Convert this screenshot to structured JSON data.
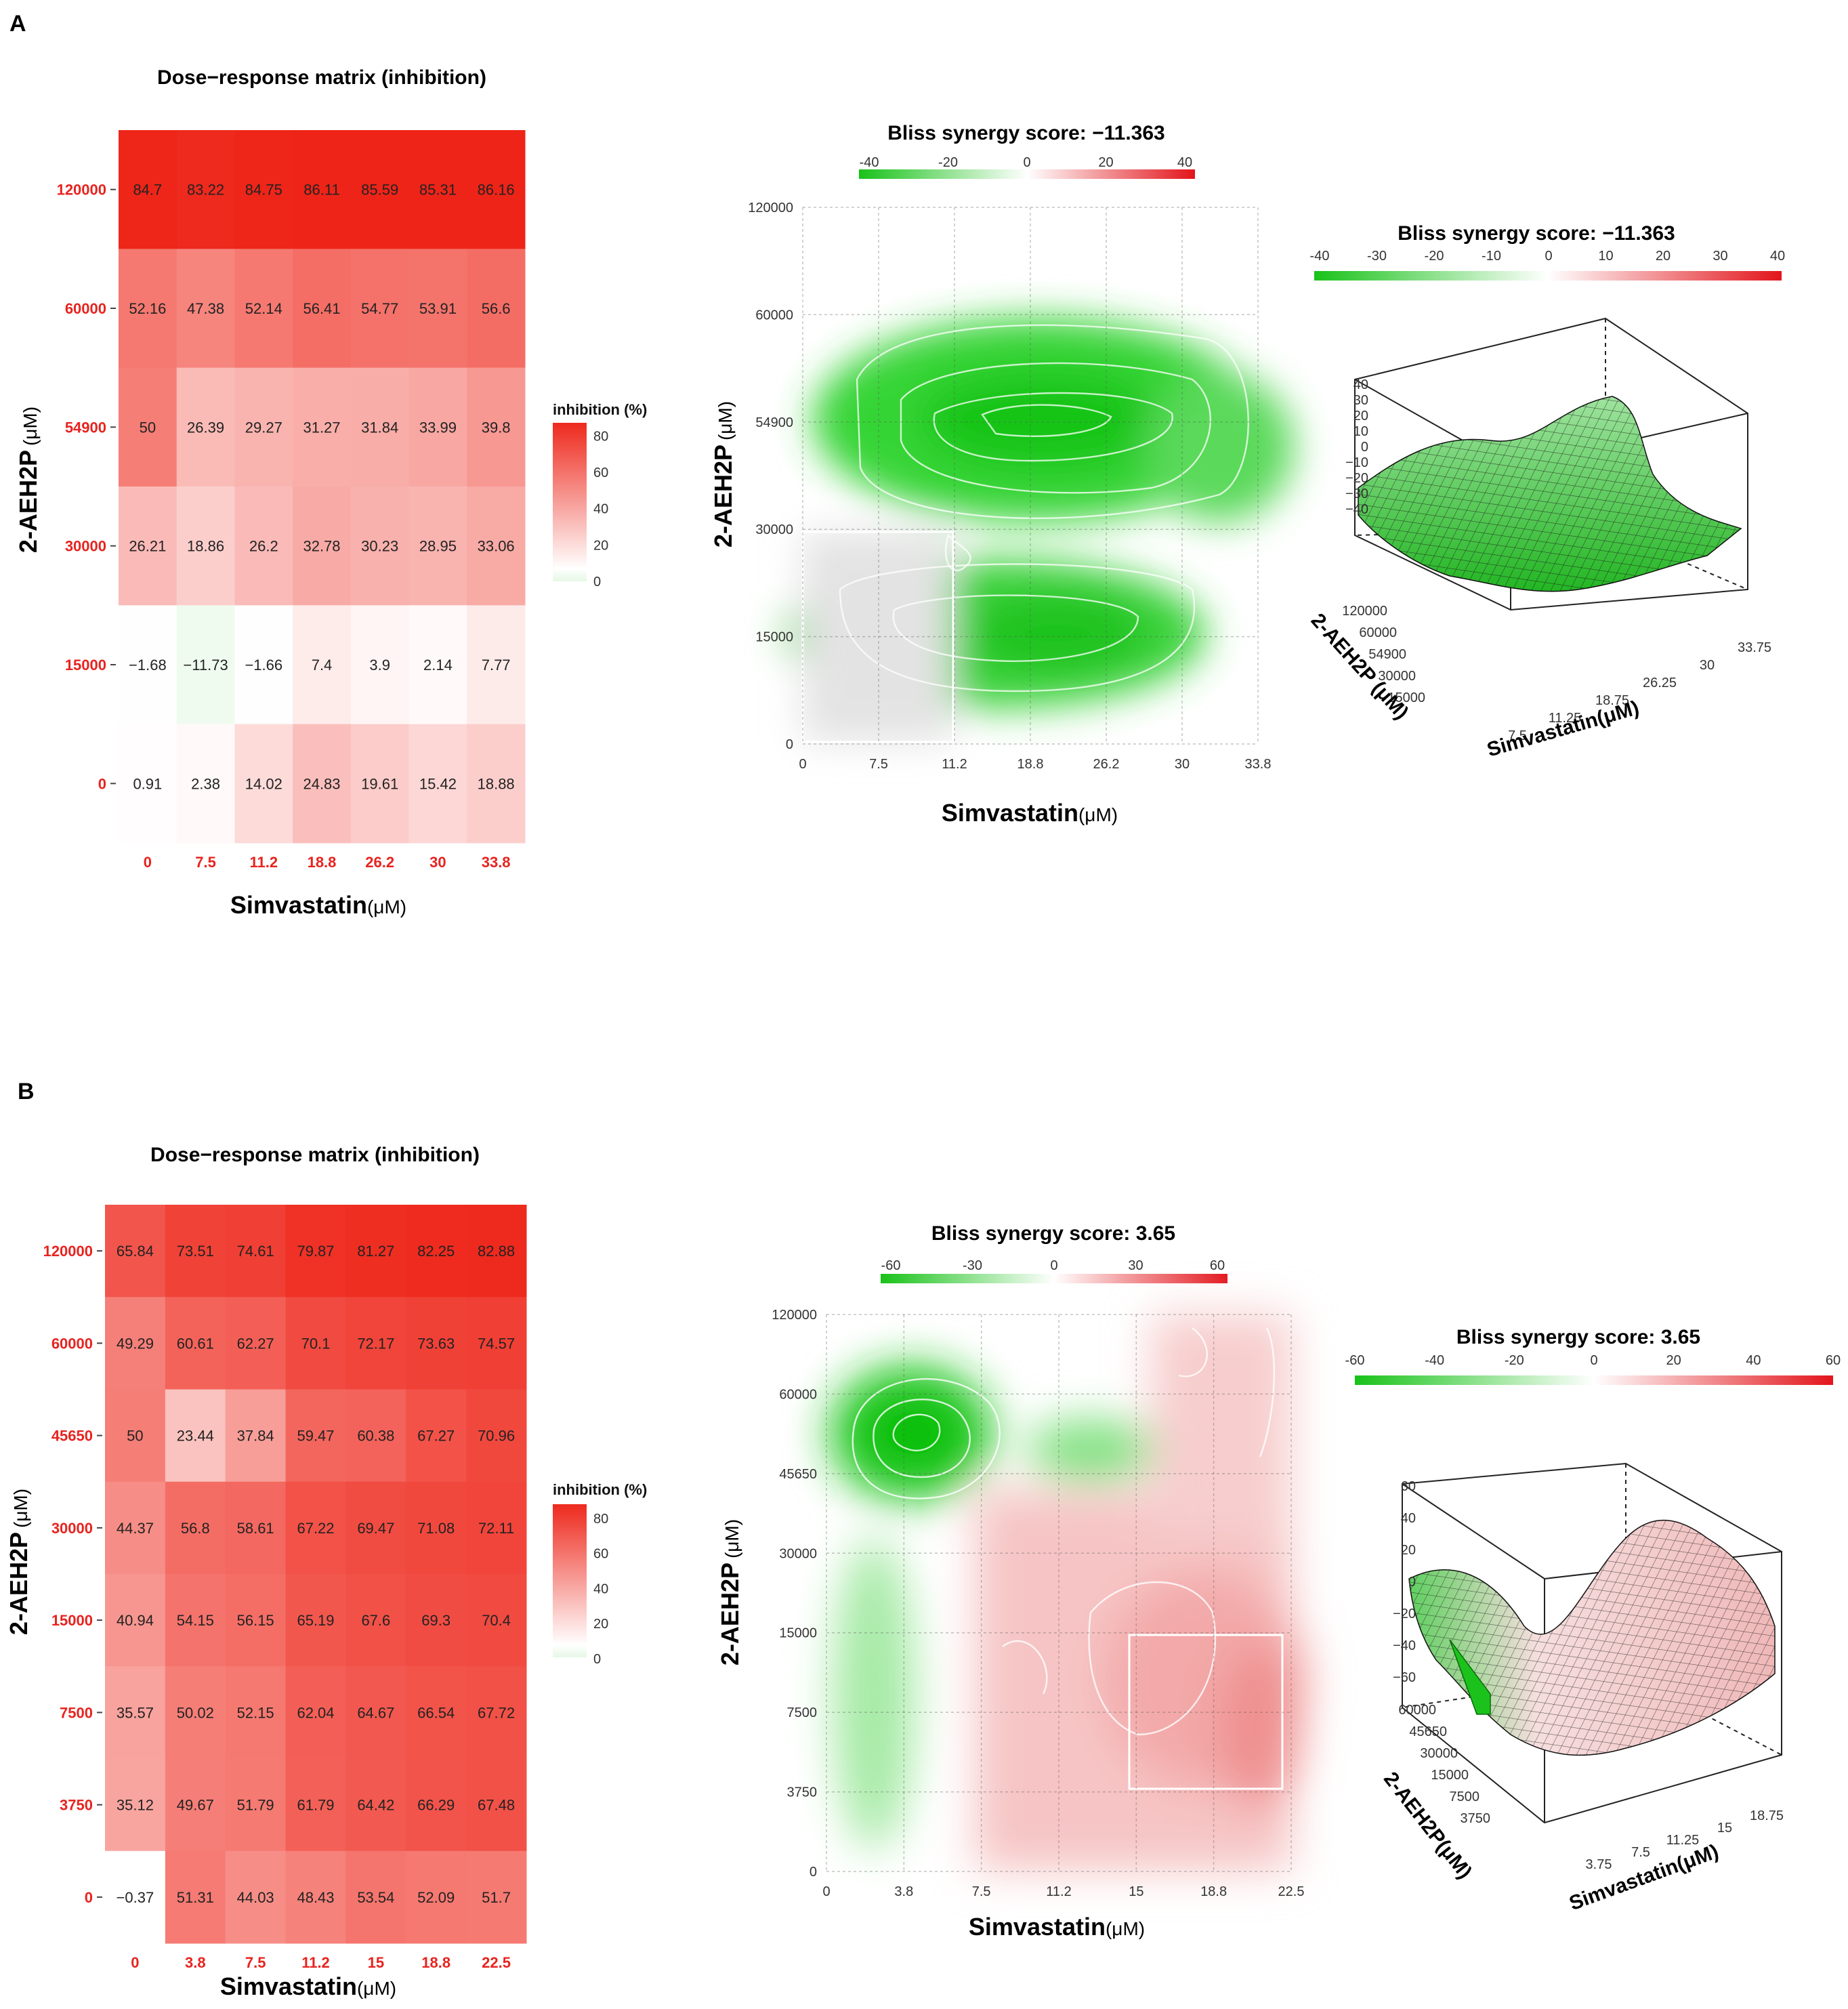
{
  "panels": {
    "A": {
      "label": "A",
      "matrix": {
        "title": "Dose−response matrix (inhibition)",
        "xlabel": "Simvastatin",
        "ylabel": "2-AEH2P",
        "unit": "(μM)",
        "x_ticks": [
          "0",
          "7.5",
          "11.2",
          "18.8",
          "26.2",
          "30",
          "33.8"
        ],
        "y_ticks": [
          "120000",
          "60000",
          "54900",
          "30000",
          "15000",
          "0"
        ],
        "values": [
          [
            84.7,
            83.22,
            84.75,
            86.11,
            85.59,
            85.31,
            86.16
          ],
          [
            52.16,
            47.38,
            52.14,
            56.41,
            54.77,
            53.91,
            56.6
          ],
          [
            50,
            26.39,
            29.27,
            31.27,
            31.84,
            33.99,
            39.8
          ],
          [
            26.21,
            18.86,
            26.2,
            32.78,
            30.23,
            28.95,
            33.06
          ],
          [
            -1.68,
            -11.73,
            -1.66,
            7.4,
            3.9,
            2.14,
            7.77
          ],
          [
            0.91,
            2.38,
            14.02,
            24.83,
            19.61,
            15.42,
            18.88
          ]
        ],
        "labels": [
          [
            "84.7",
            "83.22",
            "84.75",
            "86.11",
            "85.59",
            "85.31",
            "86.16"
          ],
          [
            "52.16",
            "47.38",
            "52.14",
            "56.41",
            "54.77",
            "53.91",
            "56.6"
          ],
          [
            "50",
            "26.39",
            "29.27",
            "31.27",
            "31.84",
            "33.99",
            "39.8"
          ],
          [
            "26.21",
            "18.86",
            "26.2",
            "32.78",
            "30.23",
            "28.95",
            "33.06"
          ],
          [
            "−1.68",
            "−11.73",
            "−1.66",
            "7.4",
            "3.9",
            "2.14",
            "7.77"
          ],
          [
            "0.91",
            "2.38",
            "14.02",
            "24.83",
            "19.61",
            "15.42",
            "18.88"
          ]
        ],
        "legend_title": "inhibition (%)",
        "legend_ticks": [
          "80",
          "60",
          "40",
          "20",
          "0"
        ]
      },
      "contour": {
        "title": "Bliss synergy score: −11.363",
        "legend_ticks": [
          "-40",
          "-20",
          "0",
          "20",
          "40"
        ],
        "x_ticks": [
          "0",
          "7.5",
          "11.2",
          "18.8",
          "26.2",
          "30",
          "33.8"
        ],
        "y_ticks": [
          "120000",
          "60000",
          "54900",
          "30000",
          "15000",
          "0"
        ],
        "xlabel": "Simvastatin",
        "ylabel": "2-AEH2P",
        "unit": "(μM)"
      },
      "surface": {
        "title": "Bliss synergy score: −11.363",
        "legend_ticks": [
          "-40",
          "-30",
          "-20",
          "-10",
          "0",
          "10",
          "20",
          "30",
          "40"
        ],
        "z_ticks": [
          "40",
          "30",
          "20",
          "10",
          "0",
          "−10",
          "−20",
          "−30",
          "−40"
        ],
        "x_ticks": [
          "7.5",
          "11.25",
          "18.75",
          "26.25",
          "30",
          "33.75"
        ],
        "y_ticks": [
          "120000",
          "60000",
          "54900",
          "30000",
          "15000"
        ],
        "xlabel": "Simvastatin(μM)",
        "ylabel": "2-AEH2P (μM)"
      }
    },
    "B": {
      "label": "B",
      "matrix": {
        "title": "Dose−response matrix (inhibition)",
        "xlabel": "Simvastatin",
        "ylabel": "2-AEH2P",
        "unit": "(μM)",
        "x_ticks": [
          "0",
          "3.8",
          "7.5",
          "11.2",
          "15",
          "18.8",
          "22.5"
        ],
        "y_ticks": [
          "120000",
          "60000",
          "45650",
          "30000",
          "15000",
          "7500",
          "3750",
          "0"
        ],
        "values": [
          [
            65.84,
            73.51,
            74.61,
            79.87,
            81.27,
            82.25,
            82.88
          ],
          [
            49.29,
            60.61,
            62.27,
            70.1,
            72.17,
            73.63,
            74.57
          ],
          [
            50,
            23.44,
            37.84,
            59.47,
            60.38,
            67.27,
            70.96
          ],
          [
            44.37,
            56.8,
            58.61,
            67.22,
            69.47,
            71.08,
            72.11
          ],
          [
            40.94,
            54.15,
            56.15,
            65.19,
            67.6,
            69.3,
            70.4
          ],
          [
            35.57,
            50.02,
            52.15,
            62.04,
            64.67,
            66.54,
            67.72
          ],
          [
            35.12,
            49.67,
            51.79,
            61.79,
            64.42,
            66.29,
            67.48
          ],
          [
            -0.37,
            51.31,
            44.03,
            48.43,
            53.54,
            52.09,
            51.7
          ]
        ],
        "labels": [
          [
            "65.84",
            "73.51",
            "74.61",
            "79.87",
            "81.27",
            "82.25",
            "82.88"
          ],
          [
            "49.29",
            "60.61",
            "62.27",
            "70.1",
            "72.17",
            "73.63",
            "74.57"
          ],
          [
            "50",
            "23.44",
            "37.84",
            "59.47",
            "60.38",
            "67.27",
            "70.96"
          ],
          [
            "44.37",
            "56.8",
            "58.61",
            "67.22",
            "69.47",
            "71.08",
            "72.11"
          ],
          [
            "40.94",
            "54.15",
            "56.15",
            "65.19",
            "67.6",
            "69.3",
            "70.4"
          ],
          [
            "35.57",
            "50.02",
            "52.15",
            "62.04",
            "64.67",
            "66.54",
            "67.72"
          ],
          [
            "35.12",
            "49.67",
            "51.79",
            "61.79",
            "64.42",
            "66.29",
            "67.48"
          ],
          [
            "−0.37",
            "51.31",
            "44.03",
            "48.43",
            "53.54",
            "52.09",
            "51.7"
          ]
        ],
        "legend_title": "inhibition (%)",
        "legend_ticks": [
          "80",
          "60",
          "40",
          "20",
          "0"
        ]
      },
      "contour": {
        "title": "Bliss synergy score: 3.65",
        "legend_ticks": [
          "-60",
          "-30",
          "0",
          "30",
          "60"
        ],
        "x_ticks": [
          "0",
          "3.8",
          "7.5",
          "11.2",
          "15",
          "18.8",
          "22.5"
        ],
        "y_ticks": [
          "120000",
          "60000",
          "45650",
          "30000",
          "15000",
          "7500",
          "3750",
          "0"
        ],
        "xlabel": "Simvastatin",
        "ylabel": "2-AEH2P",
        "unit": "(μM)"
      },
      "surface": {
        "title": "Bliss synergy score: 3.65",
        "legend_ticks": [
          "-60",
          "-40",
          "-20",
          "0",
          "20",
          "40",
          "60"
        ],
        "z_ticks": [
          "60",
          "40",
          "20",
          "0",
          "−20",
          "−40",
          "−60"
        ],
        "x_ticks": [
          "3.75",
          "7.5",
          "11.25",
          "15",
          "18.75"
        ],
        "y_ticks": [
          "60000",
          "45650",
          "30000",
          "15000",
          "7500",
          "3750"
        ],
        "xlabel": "Simvastatin(μM)",
        "ylabel": "2-AEH2P(μM)"
      }
    }
  },
  "chart_data": [
    {
      "type": "heatmap",
      "title": "Dose−response matrix (inhibition)",
      "xlabel": "Simvastatin (μM)",
      "ylabel": "2-AEH2P (μM)",
      "x": [
        0,
        7.5,
        11.2,
        18.8,
        26.2,
        30,
        33.8
      ],
      "y": [
        120000,
        60000,
        54900,
        30000,
        15000,
        0
      ],
      "values": [
        [
          84.7,
          83.22,
          84.75,
          86.11,
          85.59,
          85.31,
          86.16
        ],
        [
          52.16,
          47.38,
          52.14,
          56.41,
          54.77,
          53.91,
          56.6
        ],
        [
          50,
          26.39,
          29.27,
          31.27,
          31.84,
          33.99,
          39.8
        ],
        [
          26.21,
          18.86,
          26.2,
          32.78,
          30.23,
          28.95,
          33.06
        ],
        [
          -1.68,
          -11.73,
          -1.66,
          7.4,
          3.9,
          2.14,
          7.77
        ],
        [
          0.91,
          2.38,
          14.02,
          24.83,
          19.61,
          15.42,
          18.88
        ]
      ],
      "color_range": [
        0,
        80
      ]
    },
    {
      "type": "heatmap",
      "title": "Bliss synergy score: −11.363",
      "xlabel": "Simvastatin (μM)",
      "ylabel": "2-AEH2P (μM)",
      "x": [
        0,
        7.5,
        11.2,
        18.8,
        26.2,
        30,
        33.8
      ],
      "y": [
        120000,
        60000,
        54900,
        30000,
        15000,
        0
      ],
      "color_range": [
        -40,
        40
      ]
    },
    {
      "type": "heatmap",
      "title": "Dose−response matrix (inhibition)",
      "xlabel": "Simvastatin (μM)",
      "ylabel": "2-AEH2P (μM)",
      "x": [
        0,
        3.8,
        7.5,
        11.2,
        15,
        18.8,
        22.5
      ],
      "y": [
        120000,
        60000,
        45650,
        30000,
        15000,
        7500,
        3750,
        0
      ],
      "values": [
        [
          65.84,
          73.51,
          74.61,
          79.87,
          81.27,
          82.25,
          82.88
        ],
        [
          49.29,
          60.61,
          62.27,
          70.1,
          72.17,
          73.63,
          74.57
        ],
        [
          50,
          23.44,
          37.84,
          59.47,
          60.38,
          67.27,
          70.96
        ],
        [
          44.37,
          56.8,
          58.61,
          67.22,
          69.47,
          71.08,
          72.11
        ],
        [
          40.94,
          54.15,
          56.15,
          65.19,
          67.6,
          69.3,
          70.4
        ],
        [
          35.57,
          50.02,
          52.15,
          62.04,
          64.67,
          66.54,
          67.72
        ],
        [
          35.12,
          49.67,
          51.79,
          61.79,
          64.42,
          66.29,
          67.48
        ],
        [
          -0.37,
          51.31,
          44.03,
          48.43,
          53.54,
          52.09,
          51.7
        ]
      ],
      "color_range": [
        0,
        80
      ]
    },
    {
      "type": "heatmap",
      "title": "Bliss synergy score: 3.65",
      "xlabel": "Simvastatin (μM)",
      "ylabel": "2-AEH2P (μM)",
      "x": [
        0,
        3.8,
        7.5,
        11.2,
        15,
        18.8,
        22.5
      ],
      "y": [
        120000,
        60000,
        45650,
        30000,
        15000,
        7500,
        3750,
        0
      ],
      "color_range": [
        -60,
        60
      ]
    }
  ]
}
